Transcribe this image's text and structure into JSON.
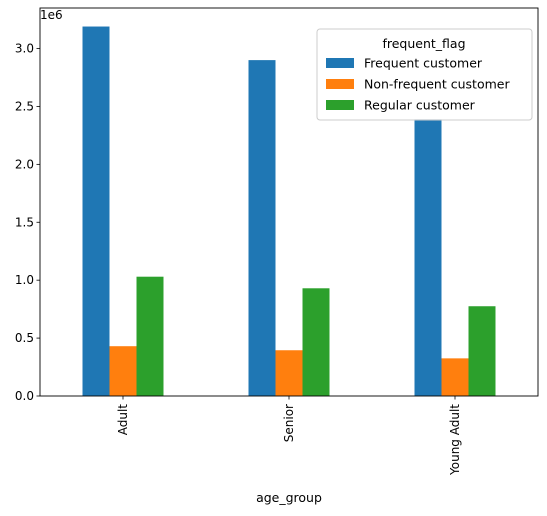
{
  "chart_data": {
    "type": "bar",
    "categories": [
      "Adult",
      "Senior",
      "Young Adult"
    ],
    "series": [
      {
        "name": "Frequent customer",
        "values": [
          3190000,
          2900000,
          2390000
        ],
        "color": "#1f77b4"
      },
      {
        "name": "Non-frequent customer",
        "values": [
          430000,
          395000,
          325000
        ],
        "color": "#ff7f0e"
      },
      {
        "name": "Regular customer",
        "values": [
          1030000,
          930000,
          775000
        ],
        "color": "#2ca02c"
      }
    ],
    "xlabel": "age_group",
    "ylabel": "",
    "y_offset_label": "1e6",
    "ylim": [
      0,
      3350000
    ],
    "y_ticks": [
      0,
      500000,
      1000000,
      1500000,
      2000000,
      2500000,
      3000000
    ],
    "y_tick_labels": [
      "0.0",
      "0.5",
      "1.0",
      "1.5",
      "2.0",
      "2.5",
      "3.0"
    ],
    "x_tick_rotation": "vertical",
    "legend": {
      "title": "frequent_flag",
      "placement": "top-right"
    },
    "grid": false
  }
}
